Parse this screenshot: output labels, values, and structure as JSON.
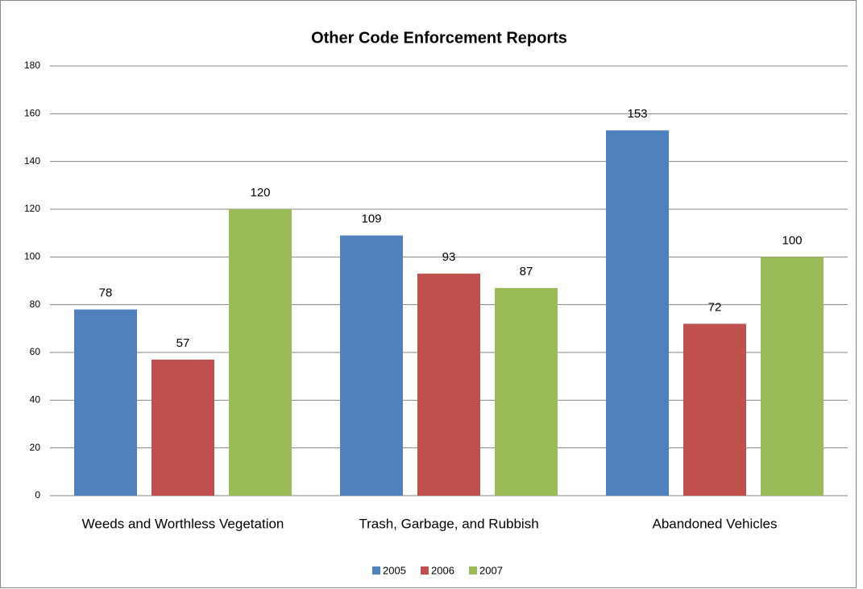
{
  "chart_data": {
    "type": "bar",
    "title": "Other Code Enforcement Reports",
    "categories": [
      "Weeds and Worthless Vegetation",
      "Trash, Garbage, and Rubbish",
      "Abandoned Vehicles"
    ],
    "series": [
      {
        "name": "2005",
        "color": "#4f81bd",
        "values": [
          78,
          109,
          153
        ]
      },
      {
        "name": "2006",
        "color": "#c0504d",
        "values": [
          57,
          93,
          72
        ]
      },
      {
        "name": "2007",
        "color": "#9bbb59",
        "values": [
          120,
          87,
          100
        ]
      }
    ],
    "ylim": [
      0,
      180
    ],
    "yticks": [
      0,
      20,
      40,
      60,
      80,
      100,
      120,
      140,
      160,
      180
    ],
    "grid": true,
    "legend": "bottom"
  }
}
